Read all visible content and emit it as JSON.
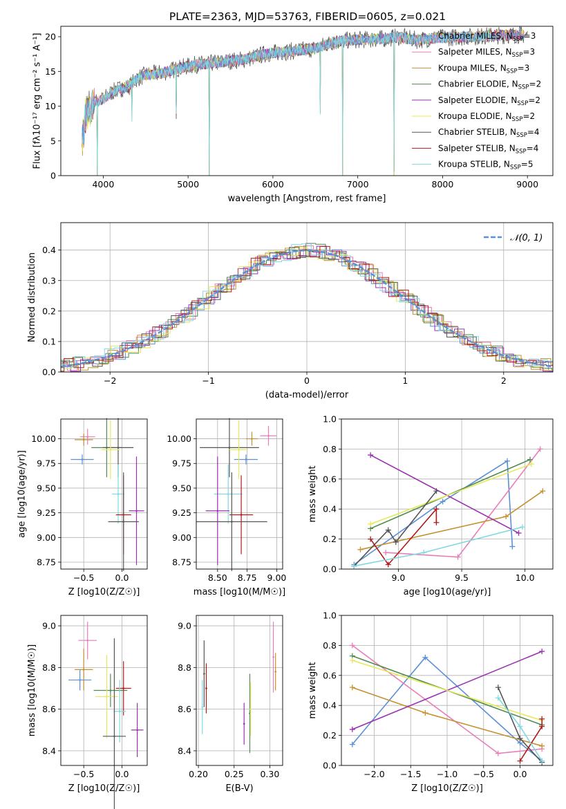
{
  "figure": {
    "title": "PLATE=2363, MJD=53763, FIBERID=0605, z=0.021"
  },
  "models": [
    {
      "label": "Chabrier MILES, N_SSP=3",
      "color": "#5b8fd6"
    },
    {
      "label": "Salpeter MILES, N_SSP=3",
      "color": "#e87db9"
    },
    {
      "label": "Kroupa MILES, N_SSP=3",
      "color": "#c6902f"
    },
    {
      "label": "Chabrier ELODIE, N_SSP=2",
      "color": "#4f8a4f"
    },
    {
      "label": "Salpeter ELODIE, N_SSP=2",
      "color": "#9b30b0"
    },
    {
      "label": "Kroupa ELODIE, N_SSP=2",
      "color": "#e6e85a"
    },
    {
      "label": "Chabrier STELIB, N_SSP=4",
      "color": "#555555"
    },
    {
      "label": "Salpeter STELIB, N_SSP=4",
      "color": "#b01a1a"
    },
    {
      "label": "Kroupa STELIB, N_SSP=5",
      "color": "#7fd9e0"
    }
  ],
  "chart_data": [
    {
      "id": "spectrum",
      "type": "line",
      "title": "PLATE=2363, MJD=53763, FIBERID=0605, z=0.021",
      "xlabel": "wavelength [Angstrom, rest frame]",
      "ylabel": "Flux [fλ10⁻¹⁷ erg cm⁻² s⁻¹ A⁻¹]",
      "xlim": [
        3500,
        9300
      ],
      "ylim": [
        0,
        21.5
      ],
      "xticks": [
        4000,
        5000,
        6000,
        7000,
        8000,
        9000
      ],
      "yticks": [
        0,
        5,
        10,
        15,
        20
      ],
      "x": [
        3750,
        3800,
        3900,
        4000,
        4100,
        4200,
        4300,
        4400,
        4500,
        4700,
        4900,
        5100,
        5300,
        5500,
        5700,
        5900,
        6100,
        6300,
        6500,
        6700,
        6900,
        7100,
        7300,
        7500,
        7700,
        7900,
        8100,
        8300,
        8500,
        8700,
        8900,
        9000
      ],
      "y": [
        5,
        9,
        10.5,
        11,
        12,
        12.5,
        12.8,
        14,
        14.5,
        14.8,
        15.5,
        16,
        16.2,
        16.5,
        16.8,
        17.5,
        17.8,
        18,
        18.3,
        19.2,
        19.5,
        19.6,
        19.7,
        20,
        19.5,
        19.8,
        19.9,
        20,
        20.1,
        20.2,
        20.3,
        20.2
      ],
      "grid": false,
      "legend": "upper-right"
    },
    {
      "id": "residual-distribution",
      "type": "histogram",
      "xlabel": "(data-model)/error",
      "ylabel": "Normed distribution",
      "xlim": [
        -2.5,
        2.5
      ],
      "ylim": [
        0,
        0.49
      ],
      "xticks": [
        -2,
        -1,
        0,
        1,
        2
      ],
      "yticks": [
        0.0,
        0.1,
        0.2,
        0.3,
        0.4
      ],
      "reference": {
        "name": "𝒩(0, 1)",
        "style": "dashed",
        "color": "#5b8fd6"
      },
      "grid": true,
      "legend": "upper-right"
    },
    {
      "id": "age-vs-Z",
      "type": "scatter",
      "xlabel": "Z [log10(Z/Z☉)]",
      "ylabel": "age  [log10(age/yr)]",
      "xlim": [
        -0.8,
        0.33
      ],
      "ylim": [
        8.68,
        10.2
      ],
      "xticks": [
        -0.5,
        0.0
      ],
      "yticks": [
        8.75,
        9.0,
        9.25,
        9.5,
        9.75,
        10.0
      ],
      "points": [
        {
          "x": -0.45,
          "y": 10.02,
          "xerr": 0.1,
          "yerr": 0.08,
          "model": 1
        },
        {
          "x": -0.5,
          "y": 9.99,
          "xerr": 0.12,
          "yerr": 0.06,
          "model": 2
        },
        {
          "x": -0.52,
          "y": 9.79,
          "xerr": 0.15,
          "yerr": 0.05,
          "model": 0
        },
        {
          "x": -0.2,
          "y": 9.91,
          "xerr": 0.2,
          "yerr": 0.3,
          "model": 3
        },
        {
          "x": -0.05,
          "y": 9.91,
          "xerr": 0.2,
          "yerr": 0.3,
          "model": 6
        },
        {
          "x": -0.15,
          "y": 9.89,
          "xerr": 0.12,
          "yerr": 0.3,
          "model": 5
        },
        {
          "x": -0.05,
          "y": 9.44,
          "xerr": 0.08,
          "yerr": 0.3,
          "model": 8
        },
        {
          "x": 0.19,
          "y": 9.27,
          "xerr": 0.1,
          "yerr": 0.55,
          "model": 4
        },
        {
          "x": 0.02,
          "y": 9.23,
          "xerr": 0.1,
          "yerr": 0.4,
          "model": 7
        },
        {
          "x": 0.02,
          "y": 9.16,
          "xerr": 0.2,
          "yerr": 0.5,
          "model": 6
        }
      ]
    },
    {
      "id": "age-vs-mass",
      "type": "scatter",
      "xlabel": "mass [log10(M/M☉)]",
      "ylabel": "",
      "xlim": [
        8.32,
        9.05
      ],
      "ylim": [
        8.68,
        10.2
      ],
      "xticks": [
        8.5,
        8.75,
        9.0
      ],
      "yticks": [
        8.75,
        9.0,
        9.25,
        9.5,
        9.75,
        10.0
      ],
      "points": [
        {
          "x": 8.93,
          "y": 10.03,
          "xerr": 0.07,
          "yerr": 0.1,
          "model": 1
        },
        {
          "x": 8.79,
          "y": 10.0,
          "xerr": 0.05,
          "yerr": 0.07,
          "model": 2
        },
        {
          "x": 8.74,
          "y": 9.79,
          "xerr": 0.1,
          "yerr": 0.05,
          "model": 0
        },
        {
          "x": 8.6,
          "y": 9.91,
          "xerr": 0.25,
          "yerr": 0.3,
          "model": 6
        },
        {
          "x": 8.68,
          "y": 9.89,
          "xerr": 0.08,
          "yerr": 0.3,
          "model": 5
        },
        {
          "x": 8.59,
          "y": 9.44,
          "xerr": 0.12,
          "yerr": 0.3,
          "model": 8
        },
        {
          "x": 8.5,
          "y": 9.27,
          "xerr": 0.1,
          "yerr": 0.55,
          "model": 4
        },
        {
          "x": 8.7,
          "y": 9.23,
          "xerr": 0.1,
          "yerr": 0.4,
          "model": 7
        },
        {
          "x": 8.62,
          "y": 9.16,
          "xerr": 0.3,
          "yerr": 0.5,
          "model": 6
        }
      ]
    },
    {
      "id": "weight-vs-age",
      "type": "line",
      "xlabel": "age  [log10(age/yr)]",
      "ylabel": "mass weight",
      "xlim": [
        8.55,
        10.22
      ],
      "ylim": [
        0,
        1.0
      ],
      "xticks": [
        9.0,
        9.5,
        10.0
      ],
      "yticks": [
        0.0,
        0.2,
        0.4,
        0.6,
        0.8,
        1.0
      ],
      "series": [
        {
          "model": 0,
          "x": [
            8.65,
            9.35,
            9.86,
            9.9
          ],
          "y": [
            0.03,
            0.45,
            0.72,
            0.15
          ]
        },
        {
          "model": 1,
          "x": [
            8.9,
            9.47,
            10.12
          ],
          "y": [
            0.11,
            0.08,
            0.8
          ]
        },
        {
          "model": 2,
          "x": [
            8.7,
            9.85,
            10.14
          ],
          "y": [
            0.13,
            0.35,
            0.52
          ]
        },
        {
          "model": 3,
          "x": [
            8.78,
            10.04
          ],
          "y": [
            0.27,
            0.73
          ]
        },
        {
          "model": 4,
          "x": [
            8.78,
            9.95
          ],
          "y": [
            0.76,
            0.24
          ]
        },
        {
          "model": 5,
          "x": [
            8.78,
            10.05
          ],
          "y": [
            0.3,
            0.7
          ]
        },
        {
          "model": 6,
          "x": [
            8.65,
            8.92,
            8.98,
            9.3
          ],
          "y": [
            0.02,
            0.26,
            0.18,
            0.52
          ]
        },
        {
          "model": 7,
          "x": [
            8.78,
            8.92,
            9.3,
            9.3
          ],
          "y": [
            0.2,
            0.03,
            0.4,
            0.31
          ]
        },
        {
          "model": 8,
          "x": [
            8.65,
            9.2,
            9.98
          ],
          "y": [
            0.02,
            0.11,
            0.28
          ]
        }
      ]
    },
    {
      "id": "mass-vs-Z",
      "type": "scatter",
      "xlabel": "Z [log10(Z/Z☉)]",
      "ylabel": "mass [log10(M/M☉)]",
      "xlim": [
        -0.8,
        0.33
      ],
      "ylim": [
        8.33,
        9.05
      ],
      "xticks": [
        -0.5,
        0.0
      ],
      "yticks": [
        8.4,
        8.6,
        8.8,
        9.0
      ],
      "points": [
        {
          "x": -0.45,
          "y": 8.93,
          "xerr": 0.12,
          "yerr": 0.09,
          "model": 1
        },
        {
          "x": -0.5,
          "y": 8.79,
          "xerr": 0.12,
          "yerr": 0.1,
          "model": 2
        },
        {
          "x": -0.55,
          "y": 8.74,
          "xerr": 0.15,
          "yerr": 0.05,
          "model": 0
        },
        {
          "x": -0.15,
          "y": 8.69,
          "xerr": 0.22,
          "yerr": 0.08,
          "model": 3
        },
        {
          "x": -0.2,
          "y": 8.66,
          "xerr": 0.15,
          "yerr": 0.2,
          "model": 5
        },
        {
          "x": 0.02,
          "y": 8.7,
          "xerr": 0.1,
          "yerr": 0.13,
          "model": 7
        },
        {
          "x": -0.03,
          "y": 8.59,
          "xerr": 0.08,
          "yerr": 0.15,
          "model": 8
        },
        {
          "x": -0.1,
          "y": 8.47,
          "xerr": 0.15,
          "yerr": 0.47,
          "model": 6
        },
        {
          "x": 0.2,
          "y": 8.5,
          "xerr": 0.08,
          "yerr": 0.13,
          "model": 4
        }
      ]
    },
    {
      "id": "mass-vs-ebv",
      "type": "scatter",
      "xlabel": "E(B-V)",
      "ylabel": "",
      "xlim": [
        0.197,
        0.318
      ],
      "ylim": [
        8.33,
        9.05
      ],
      "xticks": [
        0.2,
        0.25,
        0.3
      ],
      "yticks": [
        8.4,
        8.6,
        8.8,
        9.0
      ],
      "points": [
        {
          "x": 0.2055,
          "y": 8.61,
          "xerr": 0,
          "yerr": 0.13,
          "model": 8
        },
        {
          "x": 0.208,
          "y": 8.77,
          "xerr": 0,
          "yerr": 0.16,
          "model": 6
        },
        {
          "x": 0.211,
          "y": 8.7,
          "xerr": 0,
          "yerr": 0.12,
          "model": 7
        },
        {
          "x": 0.264,
          "y": 8.53,
          "xerr": 0,
          "yerr": 0.1,
          "model": 4
        },
        {
          "x": 0.272,
          "y": 8.58,
          "xerr": 0,
          "yerr": 0.19,
          "model": 3
        },
        {
          "x": 0.273,
          "y": 8.6,
          "xerr": 0,
          "yerr": 0.13,
          "model": 5
        },
        {
          "x": 0.305,
          "y": 8.85,
          "xerr": 0,
          "yerr": 0.17,
          "model": 1
        },
        {
          "x": 0.308,
          "y": 8.78,
          "xerr": 0,
          "yerr": 0.09,
          "model": 2
        }
      ]
    },
    {
      "id": "weight-vs-Z",
      "type": "line",
      "xlabel": "Z [log10(Z/Z☉)]",
      "ylabel": "mass weight",
      "xlim": [
        -2.45,
        0.45
      ],
      "ylim": [
        0,
        1.0
      ],
      "xticks": [
        -2.0,
        -1.5,
        -1.0,
        -0.5,
        0.0
      ],
      "yticks": [
        0.0,
        0.2,
        0.4,
        0.6,
        0.8,
        1.0
      ],
      "series": [
        {
          "model": 0,
          "x": [
            -2.3,
            -1.3,
            0.0,
            0.3
          ],
          "y": [
            0.14,
            0.72,
            0.15,
            0.03
          ]
        },
        {
          "model": 1,
          "x": [
            -2.3,
            -0.3,
            0.3
          ],
          "y": [
            0.8,
            0.08,
            0.11
          ]
        },
        {
          "model": 2,
          "x": [
            -2.3,
            -1.3,
            0.3
          ],
          "y": [
            0.52,
            0.35,
            0.13
          ]
        },
        {
          "model": 3,
          "x": [
            -2.3,
            0.3
          ],
          "y": [
            0.73,
            0.27
          ]
        },
        {
          "model": 4,
          "x": [
            -2.3,
            0.3
          ],
          "y": [
            0.24,
            0.76
          ]
        },
        {
          "model": 5,
          "x": [
            -2.3,
            0.3
          ],
          "y": [
            0.7,
            0.3
          ]
        },
        {
          "model": 6,
          "x": [
            -0.3,
            0.0,
            0.3
          ],
          "y": [
            0.52,
            0.18,
            0.02
          ]
        },
        {
          "model": 7,
          "x": [
            0.0,
            0.3,
            0.3
          ],
          "y": [
            0.03,
            0.26,
            0.31
          ]
        },
        {
          "model": 8,
          "x": [
            -0.3,
            0.0,
            0.3
          ],
          "y": [
            0.45,
            0.26,
            0.03
          ]
        }
      ]
    }
  ]
}
